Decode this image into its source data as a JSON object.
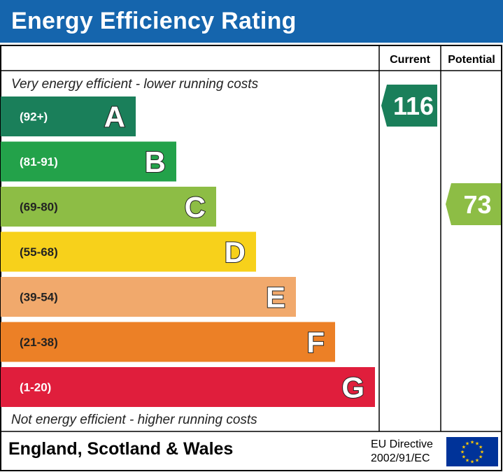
{
  "title": "Energy Efficiency Rating",
  "headers": {
    "current": "Current",
    "potential": "Potential"
  },
  "top_note": "Very energy efficient - lower running costs",
  "bottom_note": "Not energy efficient - higher running costs",
  "chart_data": {
    "type": "bar",
    "categories": [
      "A",
      "B",
      "C",
      "D",
      "E",
      "F",
      "G"
    ],
    "ranges": [
      "(92+)",
      "(81-91)",
      "(69-80)",
      "(55-68)",
      "(39-54)",
      "(21-38)",
      "(1-20)"
    ],
    "colors": [
      "#1a7f5a",
      "#23a24a",
      "#8dbd45",
      "#f7d11b",
      "#f1a96c",
      "#ec8026",
      "#e01e3c"
    ],
    "current": {
      "value": 116,
      "band": "A",
      "color": "#1a7f5a"
    },
    "potential": {
      "value": 73,
      "band": "C",
      "color": "#8dbd45"
    }
  },
  "footer": {
    "region": "England, Scotland & Wales",
    "directive_line1": "EU Directive",
    "directive_line2": "2002/91/EC"
  },
  "colors": {
    "title_bar": "#1565ad",
    "eu_flag": "#003399",
    "eu_stars": "#ffcc00"
  }
}
